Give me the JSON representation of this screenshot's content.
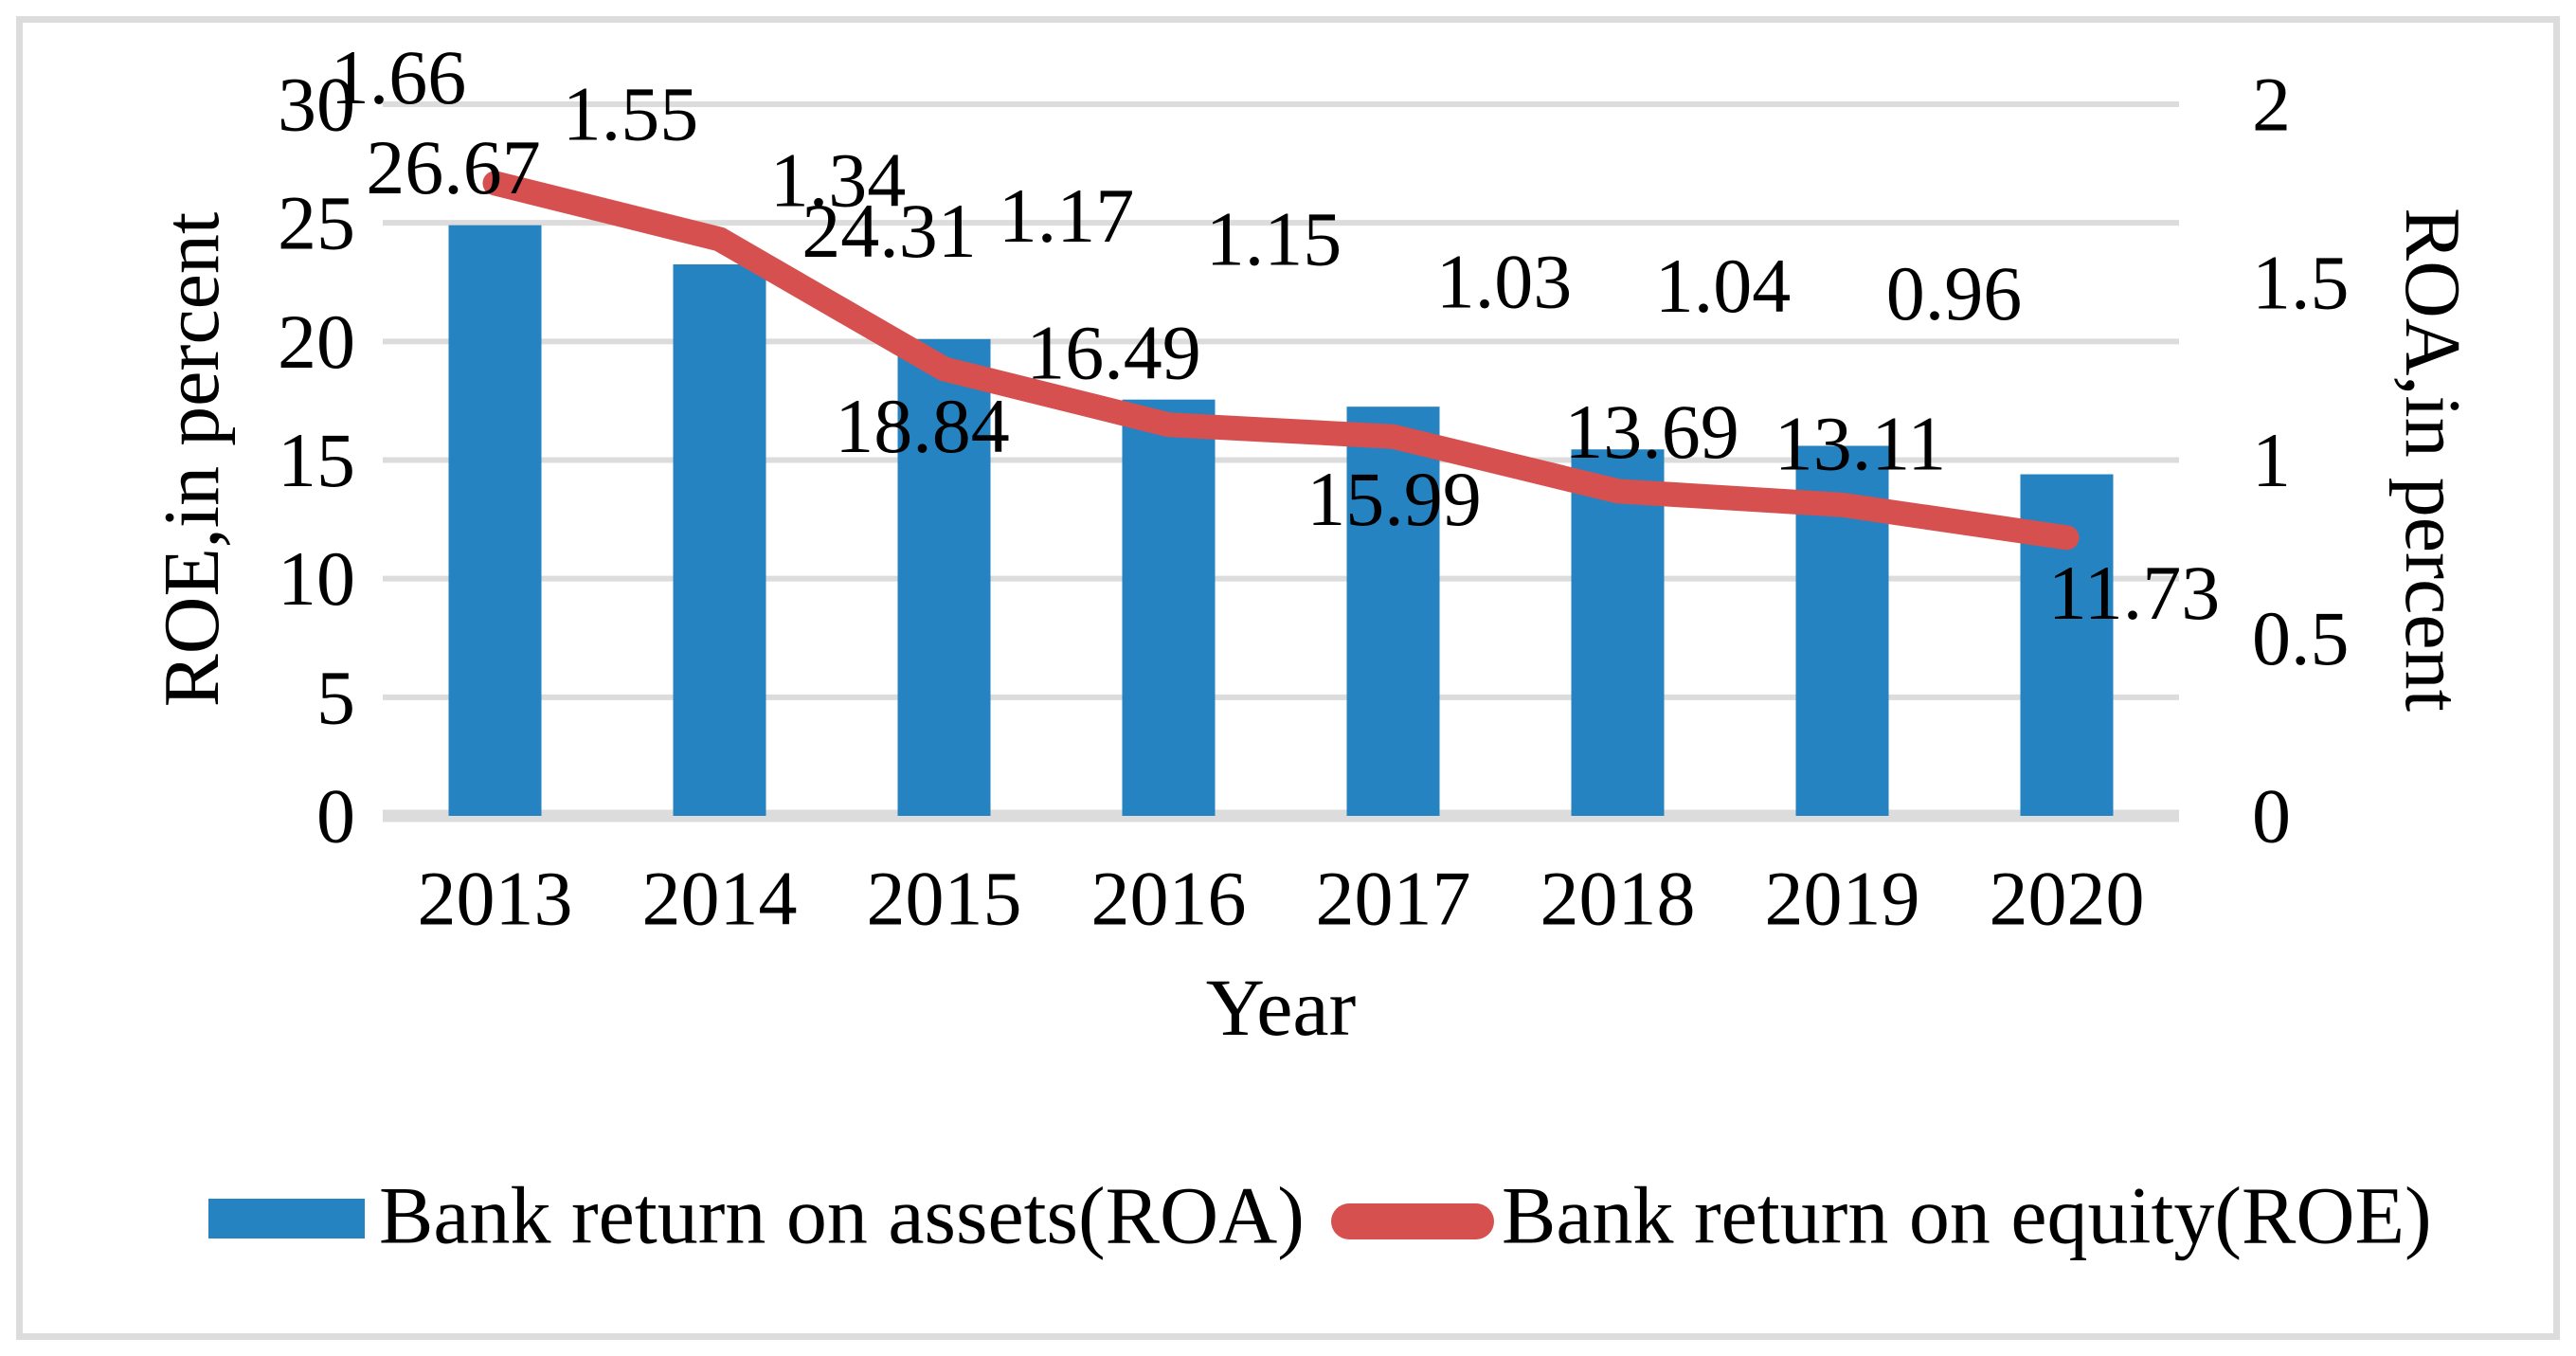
{
  "colors": {
    "bar": "#2583C1",
    "line": "#D65050",
    "grid": "#DCDCDC",
    "frame": "#DCDCDC",
    "text": "#000000"
  },
  "chart_data": {
    "type": "bar",
    "subtype": "combo-bar-line-dual-axis",
    "categories": [
      "2013",
      "2014",
      "2015",
      "2016",
      "2017",
      "2018",
      "2019",
      "2020"
    ],
    "series": [
      {
        "name": "Bank return on assets(ROA)",
        "type": "bar",
        "axis": "right",
        "color": "#2583C1",
        "values": [
          1.66,
          1.55,
          1.34,
          1.17,
          1.15,
          1.03,
          1.04,
          0.96
        ],
        "data_labels": [
          "1.66",
          "1.55",
          "1.34",
          "1.17",
          "1.15",
          "1.03",
          "1.04",
          "0.96"
        ]
      },
      {
        "name": "Bank return on equity(ROE)",
        "type": "line",
        "axis": "left",
        "color": "#D65050",
        "values": [
          26.67,
          24.31,
          18.84,
          16.49,
          15.99,
          13.69,
          13.11,
          11.73
        ],
        "data_labels": [
          "26.67",
          "24.31",
          "18.84",
          "16.49",
          "15.99",
          "13.69",
          "13.11",
          "11.73"
        ]
      }
    ],
    "xlabel": "Year",
    "left_axis": {
      "title": "ROE,in percent",
      "range": [
        0,
        30
      ],
      "tick_labels": [
        "0",
        "5",
        "10",
        "15",
        "20",
        "25",
        "30"
      ]
    },
    "right_axis": {
      "title": "ROA,in percent",
      "range": [
        0,
        2
      ],
      "tick_labels": [
        "0",
        "0.5",
        "1",
        "1.5",
        "2"
      ]
    },
    "grid": true,
    "legend_position": "bottom"
  }
}
